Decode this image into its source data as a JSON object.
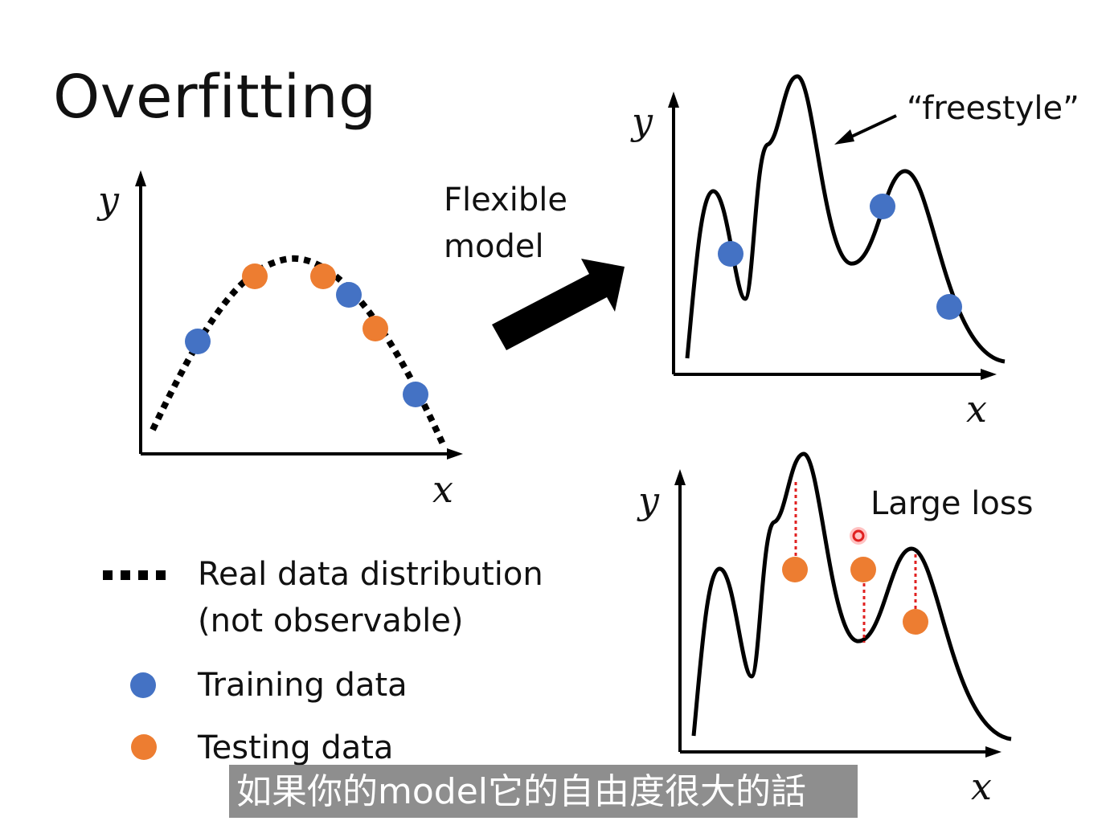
{
  "slide": {
    "title": "Overfitting",
    "flexible_model": [
      "Flexible",
      "model"
    ],
    "freestyle": "“freestyle”",
    "large_loss": "Large loss",
    "axis": {
      "x": "x",
      "y": "y"
    },
    "legend": {
      "real": [
        "Real data distribution",
        "(not observable)"
      ],
      "training": "Training data",
      "testing": "Testing data"
    },
    "subtitle": "如果你的model它的自由度很大的話"
  },
  "colors": {
    "training": "#4472C4",
    "testing": "#ED7D31",
    "loss_line": "#E02020",
    "curve": "#000000"
  },
  "icons": {
    "arrow": "bold-arrow-icon",
    "pointer": "pointer-arrow-icon",
    "cursor": "red-cursor-icon"
  }
}
